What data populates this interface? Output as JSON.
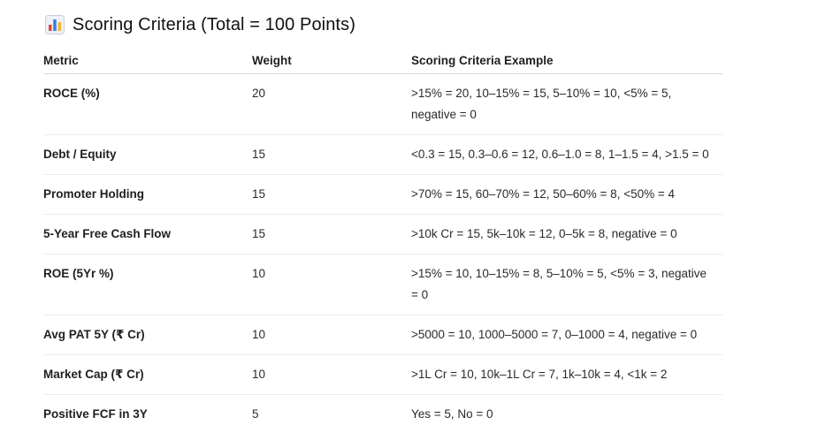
{
  "heading": {
    "icon": "bar-chart-icon",
    "title": "Scoring Criteria (Total = 100 Points)"
  },
  "table": {
    "columns": [
      "Metric",
      "Weight",
      "Scoring Criteria Example"
    ],
    "rows": [
      {
        "metric": "ROCE (%)",
        "weight": "20",
        "criteria": ">15% = 20, 10–15% = 15, 5–10% = 10, <5% = 5, negative = 0"
      },
      {
        "metric": "Debt / Equity",
        "weight": "15",
        "criteria": "<0.3 = 15, 0.3–0.6 = 12, 0.6–1.0 = 8, 1–1.5 = 4, >1.5 = 0"
      },
      {
        "metric": "Promoter Holding",
        "weight": "15",
        "criteria": ">70% = 15, 60–70% = 12, 50–60% = 8, <50% = 4"
      },
      {
        "metric": "5-Year Free Cash Flow",
        "weight": "15",
        "criteria": ">10k Cr = 15, 5k–10k = 12, 0–5k = 8, negative = 0"
      },
      {
        "metric": "ROE (5Yr %)",
        "weight": "10",
        "criteria": ">15% = 10, 10–15% = 8, 5–10% = 5, <5% = 3, negative = 0"
      },
      {
        "metric": "Avg PAT 5Y (₹ Cr)",
        "weight": "10",
        "criteria": ">5000 = 10, 1000–5000 = 7, 0–1000 = 4, negative = 0"
      },
      {
        "metric": "Market Cap (₹ Cr)",
        "weight": "10",
        "criteria": ">1L Cr = 10, 10k–1L Cr = 7, 1k–10k = 4, <1k = 2"
      },
      {
        "metric": "Positive FCF in 3Y",
        "weight": "5",
        "criteria": "Yes = 5, No = 0"
      }
    ]
  }
}
